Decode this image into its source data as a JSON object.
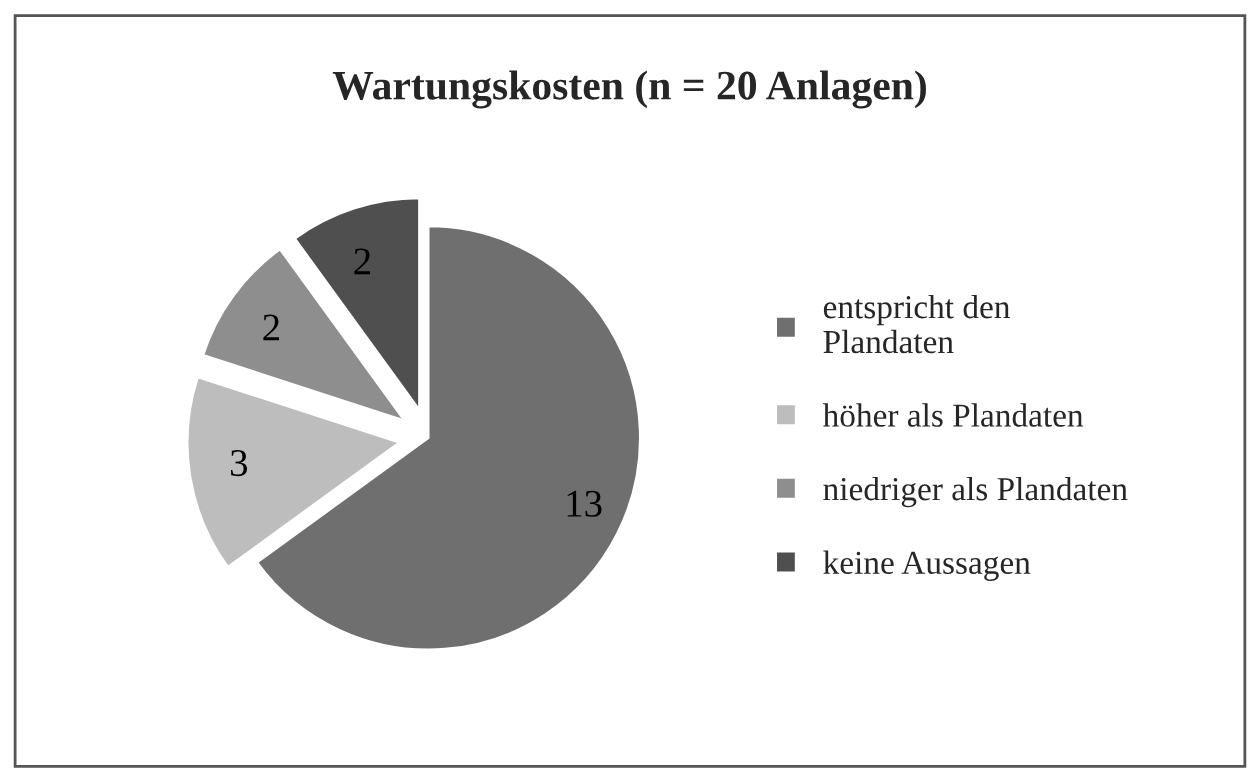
{
  "chart_data": {
    "type": "pie",
    "title": "Wartungskosten (n = 20 Anlagen)",
    "categories": [
      "entspricht den\nPlandaten",
      "höher als Plandaten",
      "niedriger als Plandaten",
      "keine Aussagen"
    ],
    "values": [
      13,
      3,
      2,
      2
    ],
    "colors": [
      "#6f6f6f",
      "#bdbdbd",
      "#8e8e8e",
      "#4f4f4f"
    ],
    "data_labels": true,
    "legend": "right"
  }
}
